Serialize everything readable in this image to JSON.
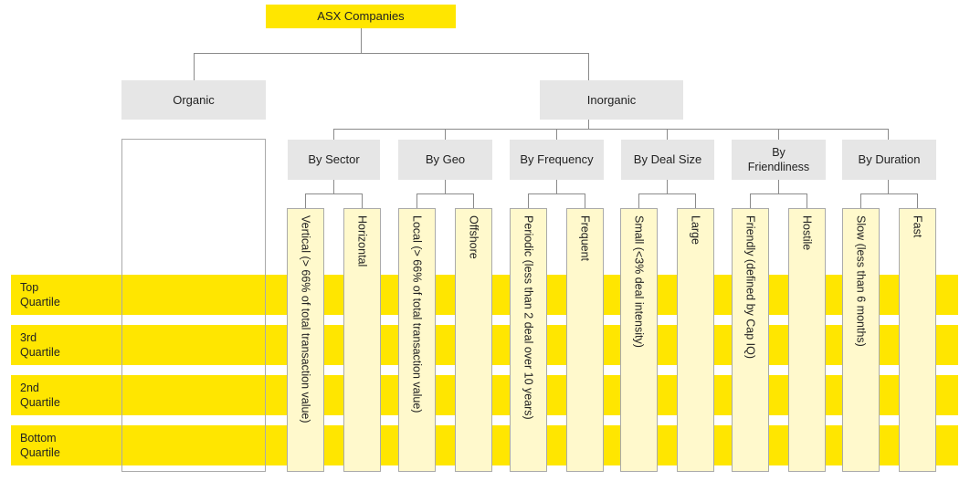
{
  "title": "ASX Companies",
  "organic": "Organic",
  "inorganic": "Inorganic",
  "categories": [
    {
      "label": "By Sector",
      "left": "Vertical (> 66% of total transaction value)",
      "right": "Horizontal"
    },
    {
      "label": "By Geo",
      "left": "Local (> 66% of total transaction value)",
      "right": "Offshore"
    },
    {
      "label": "By Frequency",
      "left": "Periodic (less than 2 deal over 10 years)",
      "right": "Frequent"
    },
    {
      "label": "By Deal Size",
      "left": "Small (<3% deal intensity)",
      "right": "Large"
    },
    {
      "label": "By Friendliness",
      "left": "Friendly (defined by Cap IQ)",
      "right": "Hostile"
    },
    {
      "label": "By Duration",
      "left": "Slow (less than 6 months)",
      "right": "Fast"
    }
  ],
  "quartiles": [
    {
      "line1": "Top",
      "line2": "Quartile"
    },
    {
      "line1": "3rd",
      "line2": "Quartile"
    },
    {
      "line1": "2nd",
      "line2": "Quartile"
    },
    {
      "line1": "Bottom",
      "line2": "Quartile"
    }
  ],
  "colors": {
    "band": "#ffe600",
    "box": "#e6e6e6",
    "column_fill": "#fff9cc",
    "line": "#8a8a8a"
  }
}
